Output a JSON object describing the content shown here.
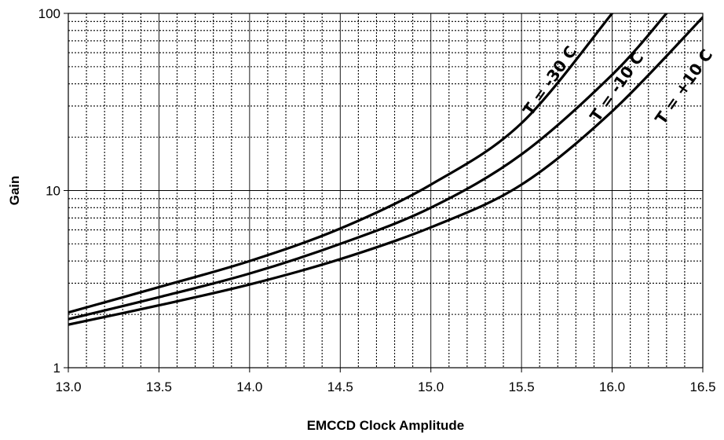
{
  "chart_data": {
    "type": "line",
    "title": "",
    "xlabel": "EMCCD Clock Amplitude",
    "ylabel": "Gain",
    "xlim": [
      13.0,
      16.5
    ],
    "ylim": [
      1,
      100
    ],
    "y_scale": "log",
    "grid": true,
    "legend": "none (curves labeled inline)",
    "x_ticks": [
      "13.0",
      "13.5",
      "14.0",
      "14.5",
      "15.0",
      "15.5",
      "16.0",
      "16.5"
    ],
    "y_ticks": [
      "1",
      "10",
      "100"
    ],
    "line_color": "#000000",
    "series": [
      {
        "name": "T = -30 C",
        "x": [
          13.0,
          13.5,
          14.0,
          14.5,
          15.0,
          15.5,
          16.0
        ],
        "y": [
          2.05,
          2.85,
          4.0,
          6.1,
          10.8,
          24.0,
          100.0
        ]
      },
      {
        "name": "T = -10 C",
        "x": [
          13.0,
          13.5,
          14.0,
          14.5,
          15.0,
          15.5,
          16.0,
          16.3
        ],
        "y": [
          1.88,
          2.5,
          3.4,
          5.0,
          8.0,
          16.0,
          45.0,
          100.0
        ]
      },
      {
        "name": "T = +10 C",
        "x": [
          13.0,
          13.5,
          14.0,
          14.5,
          15.0,
          15.5,
          16.0,
          16.5
        ],
        "y": [
          1.75,
          2.25,
          2.95,
          4.1,
          6.2,
          10.8,
          28.0,
          95.0
        ]
      }
    ]
  }
}
